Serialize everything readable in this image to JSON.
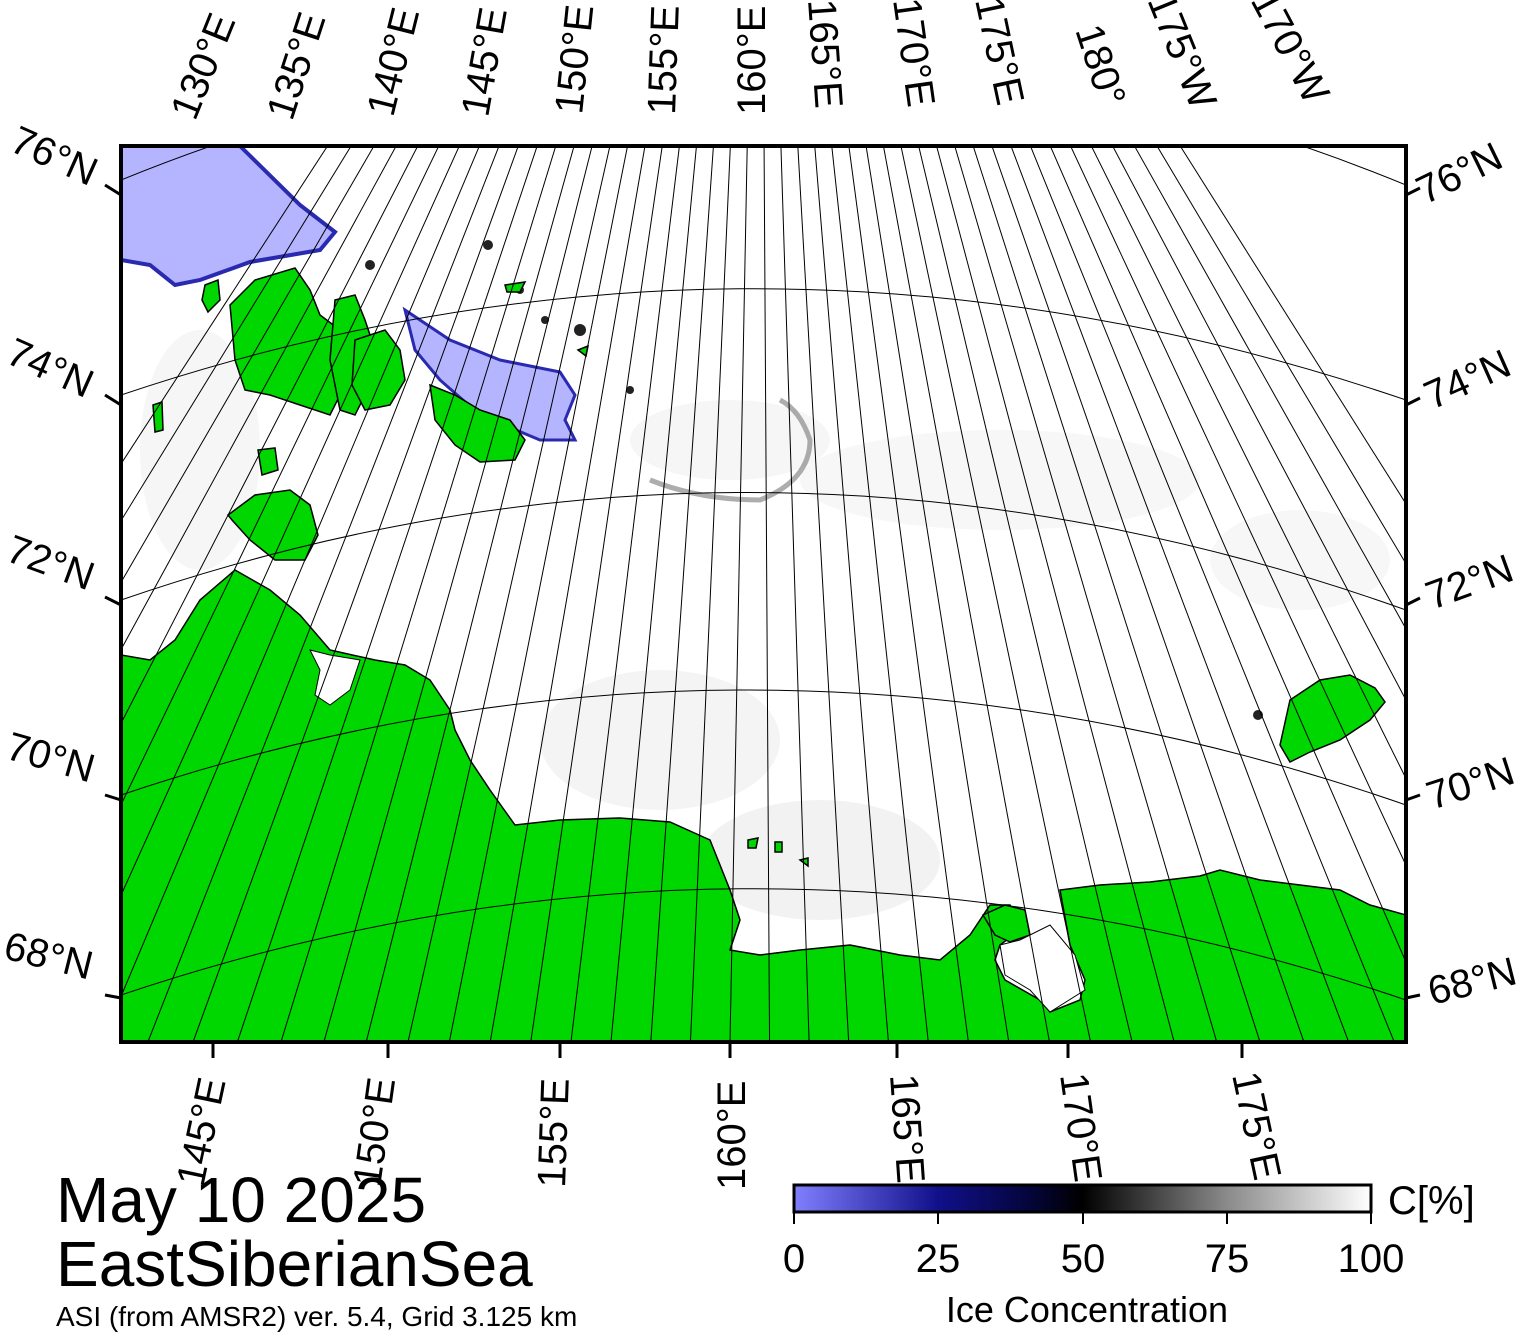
{
  "map": {
    "date": "May 10 2025",
    "region": "EastSiberianSea",
    "source": "ASI (from AMSR2) ver. 5.4,  Grid 3.125 km",
    "variable": "Ice Concentration",
    "unit": "C[%]",
    "land_color": "#00d600",
    "ocean_color": "#ffffff",
    "frame_color": "#000000"
  },
  "graticule": {
    "top_lon_labels": [
      "130°E",
      "135°E",
      "140°E",
      "145°E",
      "150°E",
      "155°E",
      "160°E",
      "165°E",
      "170°E",
      "175°E",
      "180°",
      "175°W",
      "170°W"
    ],
    "bottom_lon_labels": [
      "145°E",
      "150°E",
      "155°E",
      "160°E",
      "165°E",
      "170°E",
      "175°E"
    ],
    "left_lat_labels": [
      "76°N",
      "74°N",
      "72°N",
      "70°N",
      "68°N"
    ],
    "right_lat_labels": [
      "76°N",
      "74°N",
      "72°N",
      "70°N",
      "68°N"
    ]
  },
  "colorbar": {
    "ticks": [
      "0",
      "25",
      "50",
      "75",
      "100"
    ],
    "stops": [
      {
        "at": 0,
        "color": "#8080ff"
      },
      {
        "at": 25,
        "color": "#10108a"
      },
      {
        "at": 40,
        "color": "#050540"
      },
      {
        "at": 50,
        "color": "#000000"
      },
      {
        "at": 75,
        "color": "#8a8a8a"
      },
      {
        "at": 100,
        "color": "#ffffff"
      }
    ]
  }
}
